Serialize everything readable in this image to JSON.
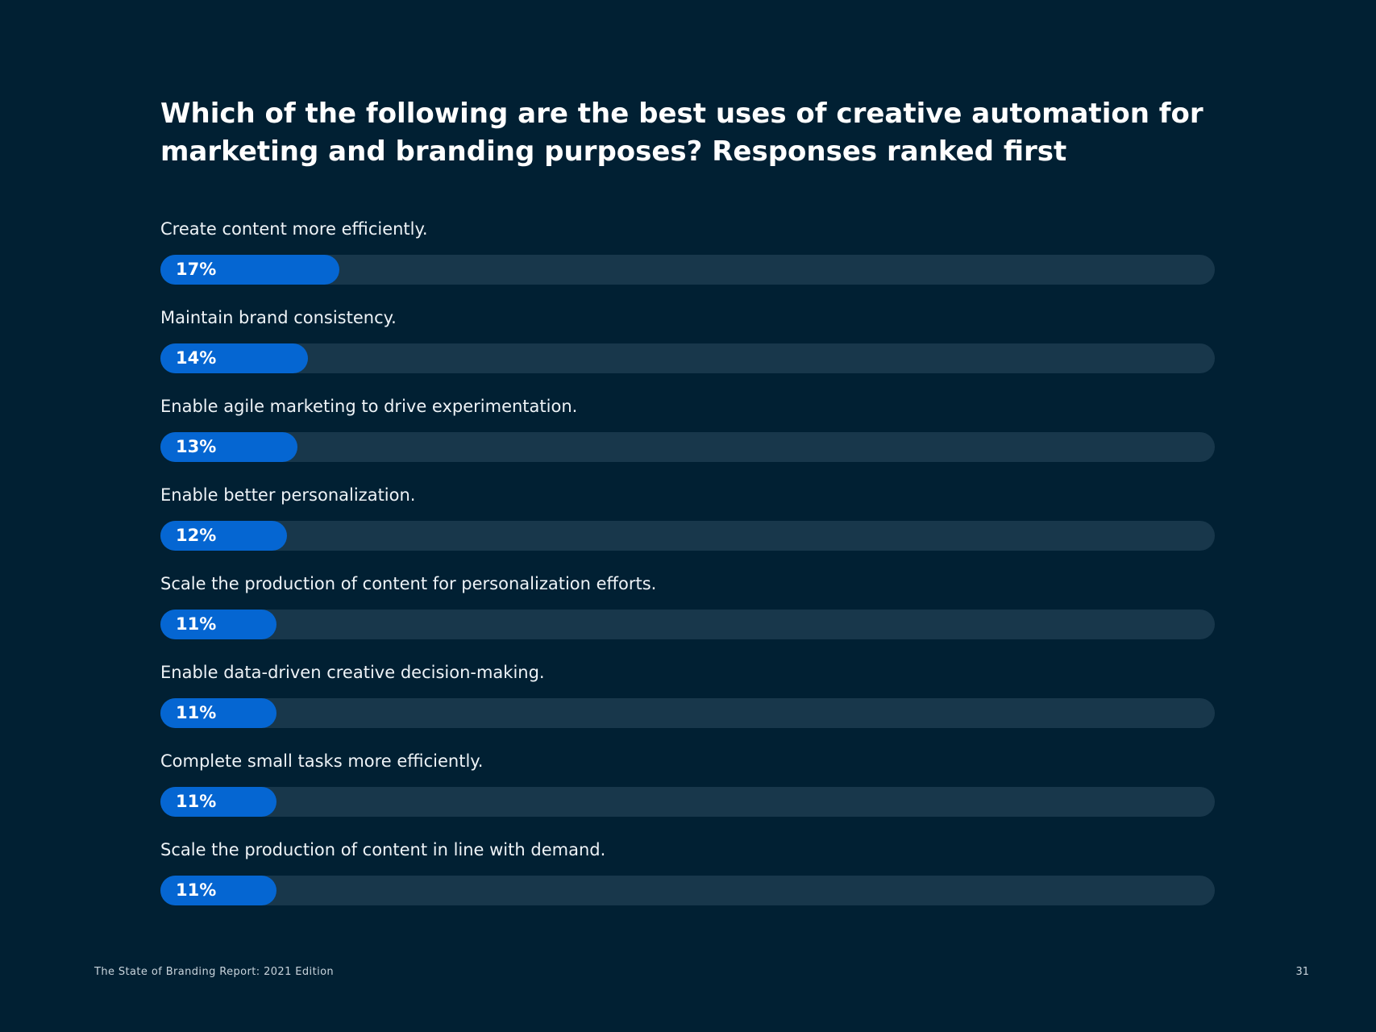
{
  "chart_data": {
    "type": "bar",
    "orientation": "horizontal",
    "title": "Which of the following are the best uses of creative automation for marketing and branding purposes? Responses ranked first",
    "categories": [
      "Create content more efficiently.",
      "Maintain brand consistency.",
      "Enable agile marketing to drive experimentation.",
      "Enable better personalization.",
      "Scale the production of content for personalization efforts.",
      "Enable data-driven creative decision-making.",
      "Complete small tasks more efficiently.",
      "Scale the production of content in line with demand."
    ],
    "values": [
      17,
      14,
      13,
      12,
      11,
      11,
      11,
      11
    ],
    "value_labels": [
      "17%",
      "14%",
      "13%",
      "12%",
      "11%",
      "11%",
      "11%",
      "11%"
    ],
    "unit": "%",
    "xlim": [
      0,
      100
    ],
    "grid": false,
    "colors": {
      "background": "#012033",
      "bar_fill": "#0566d2",
      "track": "#18374b",
      "text": "#ffffff"
    }
  },
  "footer": {
    "report_name": "The State of Branding Report: 2021 Edition",
    "page_number": "31"
  }
}
